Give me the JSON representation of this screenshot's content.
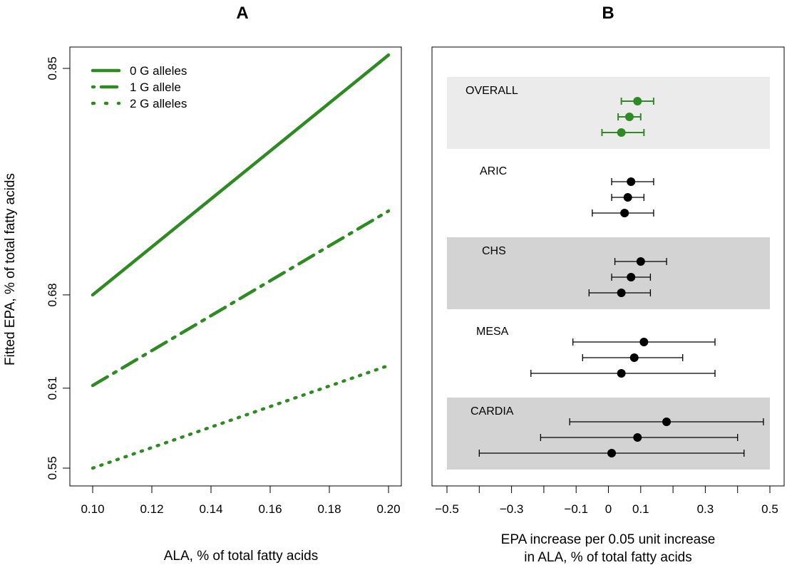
{
  "chart_data": [
    {
      "panel": "A",
      "type": "line",
      "title": "A",
      "xlabel": "ALA, % of total fatty acids",
      "ylabel": "Fitted EPA, % of total fatty acids",
      "xlim": [
        0.1,
        0.2
      ],
      "ylim": [
        0.55,
        0.85
      ],
      "x_ticks": [
        "0.10",
        "0.12",
        "0.14",
        "0.16",
        "0.18",
        "0.20"
      ],
      "y_ticks": [
        "0.55",
        "0.61",
        "0.68",
        "0.85"
      ],
      "series": [
        {
          "name": "0 G alleles",
          "style": "solid",
          "x": [
            0.1,
            0.2
          ],
          "y": [
            0.68,
            0.86
          ]
        },
        {
          "name": "1 G allele",
          "style": "dashdot",
          "x": [
            0.1,
            0.2
          ],
          "y": [
            0.612,
            0.743
          ]
        },
        {
          "name": "2 G alleles",
          "style": "dotted",
          "x": [
            0.1,
            0.2
          ],
          "y": [
            0.55,
            0.627
          ]
        }
      ],
      "legend": "top-left",
      "color": "#2e8b23"
    },
    {
      "panel": "B",
      "type": "scatter",
      "title": "B",
      "xlabel_lines": [
        "EPA increase per 0.05 unit increase",
        "in ALA, % of total fatty acids"
      ],
      "xlim": [
        -0.5,
        0.5
      ],
      "x_ticks": [
        "−0.5",
        "−0.3",
        "−0.1",
        "0",
        "0.1",
        "0.3",
        "0.5"
      ],
      "x_tick_values": [
        -0.5,
        -0.3,
        -0.1,
        0,
        0.1,
        0.3,
        0.5
      ],
      "groups": [
        {
          "label": "OVERALL",
          "shaded": "light",
          "color": "#2e8b23",
          "points": [
            {
              "est": 0.09,
              "lo": 0.04,
              "hi": 0.14
            },
            {
              "est": 0.065,
              "lo": 0.03,
              "hi": 0.1
            },
            {
              "est": 0.04,
              "lo": -0.02,
              "hi": 0.11
            }
          ]
        },
        {
          "label": "ARIC",
          "shaded": "none",
          "color": "#000000",
          "points": [
            {
              "est": 0.07,
              "lo": 0.01,
              "hi": 0.14
            },
            {
              "est": 0.06,
              "lo": 0.01,
              "hi": 0.11
            },
            {
              "est": 0.05,
              "lo": -0.05,
              "hi": 0.14
            }
          ]
        },
        {
          "label": "CHS",
          "shaded": "dark",
          "color": "#000000",
          "points": [
            {
              "est": 0.1,
              "lo": 0.02,
              "hi": 0.18
            },
            {
              "est": 0.07,
              "lo": 0.01,
              "hi": 0.13
            },
            {
              "est": 0.04,
              "lo": -0.06,
              "hi": 0.13
            }
          ]
        },
        {
          "label": "MESA",
          "shaded": "none",
          "color": "#000000",
          "points": [
            {
              "est": 0.11,
              "lo": -0.11,
              "hi": 0.33
            },
            {
              "est": 0.08,
              "lo": -0.08,
              "hi": 0.23
            },
            {
              "est": 0.04,
              "lo": -0.24,
              "hi": 0.33
            }
          ]
        },
        {
          "label": "CARDIA",
          "shaded": "dark",
          "color": "#000000",
          "points": [
            {
              "est": 0.18,
              "lo": -0.12,
              "hi": 0.48
            },
            {
              "est": 0.09,
              "lo": -0.21,
              "hi": 0.4
            },
            {
              "est": 0.01,
              "lo": -0.4,
              "hi": 0.42
            }
          ]
        }
      ],
      "shade_colors": {
        "light": "#ebebeb",
        "dark": "#d3d3d3"
      }
    }
  ]
}
